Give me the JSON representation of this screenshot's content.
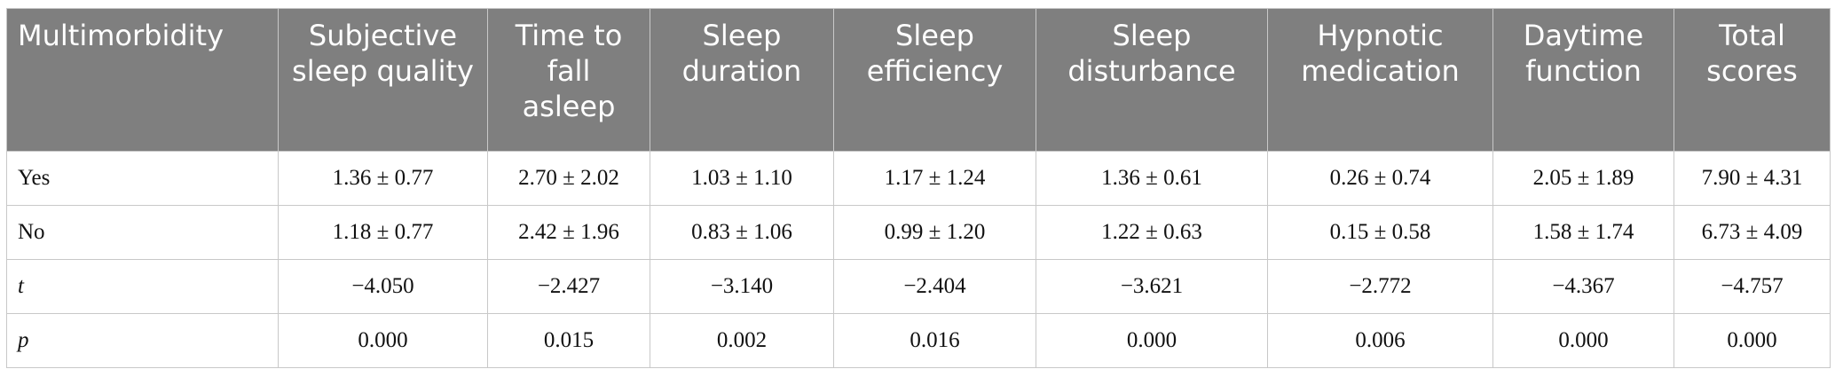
{
  "table": {
    "header": [
      "Multimorbidity",
      "Subjective sleep quality",
      "Time to fall asleep",
      "Sleep duration",
      "Sleep efficiency",
      "Sleep disturbance",
      "Hypnotic medication",
      "Daytime function",
      "Total scores"
    ],
    "rows": [
      [
        "Yes",
        "1.36 ± 0.77",
        "2.70 ± 2.02",
        "1.03 ± 1.10",
        "1.17 ± 1.24",
        "1.36 ± 0.61",
        "0.26 ± 0.74",
        "2.05 ± 1.89",
        "7.90 ± 4.31"
      ],
      [
        "No",
        "1.18 ± 0.77",
        "2.42 ± 1.96",
        "0.83 ± 1.06",
        "0.99 ± 1.20",
        "1.22 ± 0.63",
        "0.15 ± 0.58",
        "1.58 ± 1.74",
        "6.73 ± 4.09"
      ],
      [
        "t",
        "−4.050",
        "−2.427",
        "−3.140",
        "−2.404",
        "−3.621",
        "−2.772",
        "−4.367",
        "−4.757"
      ],
      [
        "p",
        "0.000",
        "0.015",
        "0.002",
        "0.016",
        "0.000",
        "0.006",
        "0.000",
        "0.000"
      ]
    ]
  }
}
